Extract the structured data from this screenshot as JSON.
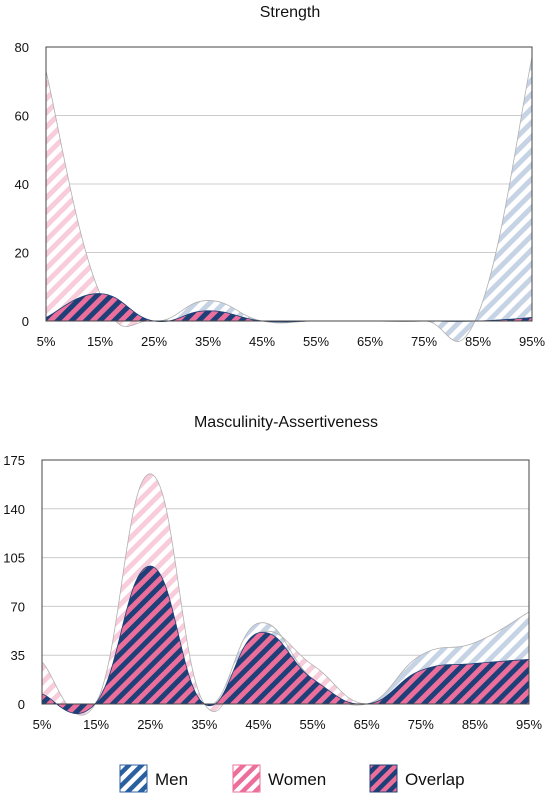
{
  "colors": {
    "men": "#2a5fa0",
    "men_light": "#c6d3e5",
    "women": "#ec6f9b",
    "women_light": "#f8ccdb",
    "overlap_bg": "#1f3f78",
    "gridline": "#cccccc",
    "axis": "#444444"
  },
  "legend": {
    "position": "bottom",
    "items": [
      {
        "key": "men",
        "label": "Men",
        "pattern": "men-icon"
      },
      {
        "key": "women",
        "label": "Women",
        "pattern": "women-icon"
      },
      {
        "key": "overlap",
        "label": "Overlap",
        "pattern": "overlap-icon"
      }
    ]
  },
  "chart_data": [
    {
      "type": "area",
      "title": "Strength",
      "xlabel": "",
      "ylabel": "",
      "x": [
        5,
        15,
        25,
        35,
        45,
        55,
        65,
        75,
        85,
        95
      ],
      "x_ticks": [
        "5%",
        "15%",
        "25%",
        "35%",
        "45%",
        "55%",
        "65%",
        "75%",
        "85%",
        "95%"
      ],
      "y_ticks": [
        "0",
        "20",
        "40",
        "60",
        "80"
      ],
      "ylim": [
        0,
        80
      ],
      "grid": true,
      "series": [
        {
          "name": "Men",
          "key": "men",
          "values": [
            1,
            8,
            0,
            6,
            0,
            0,
            0,
            0,
            2,
            77
          ]
        },
        {
          "name": "Women",
          "key": "women",
          "values": [
            73,
            8,
            0,
            3,
            0,
            0,
            0,
            0,
            0,
            1
          ]
        }
      ]
    },
    {
      "type": "area",
      "title": "Masculinity-Assertiveness",
      "xlabel": "",
      "ylabel": "",
      "x": [
        5,
        15,
        25,
        35,
        45,
        55,
        65,
        75,
        85,
        95
      ],
      "x_ticks": [
        "5%",
        "15%",
        "25%",
        "35%",
        "45%",
        "55%",
        "65%",
        "75%",
        "85%",
        "95%"
      ],
      "y_ticks": [
        "0",
        "35",
        "70",
        "105",
        "140",
        "175"
      ],
      "ylim": [
        0,
        175
      ],
      "grid": true,
      "series": [
        {
          "name": "Men",
          "key": "men",
          "values": [
            7,
            1,
            99,
            0,
            58,
            18,
            0,
            35,
            44,
            66
          ]
        },
        {
          "name": "Women",
          "key": "women",
          "values": [
            30,
            1,
            165,
            0,
            51,
            28,
            0,
            24,
            29,
            32
          ]
        }
      ]
    }
  ]
}
